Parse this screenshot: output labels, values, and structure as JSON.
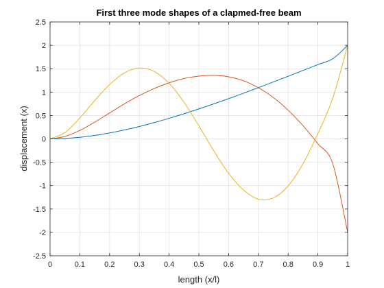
{
  "chart_data": {
    "type": "line",
    "title": "First three mode shapes of a clapmed-free beam",
    "xlabel": "length (x/l)",
    "ylabel": "displacement (x)",
    "xlim": [
      0,
      1
    ],
    "ylim": [
      -2.5,
      2.5
    ],
    "x_ticks": [
      "0",
      "0.1",
      "0.2",
      "0.3",
      "0.4",
      "0.5",
      "0.6",
      "0.7",
      "0.8",
      "0.9",
      "1"
    ],
    "y_ticks": [
      "-2.5",
      "-2",
      "-1.5",
      "-1",
      "-0.5",
      "0",
      "0.5",
      "1",
      "1.5",
      "2",
      "2.5"
    ],
    "grid": true,
    "legend": "none",
    "x": [
      0,
      0.05,
      0.1,
      0.15,
      0.2,
      0.25,
      0.3,
      0.35,
      0.4,
      0.45,
      0.5,
      0.55,
      0.6,
      0.65,
      0.7,
      0.75,
      0.8,
      0.85,
      0.9,
      0.95,
      1
    ],
    "series": [
      {
        "color": "#0072BD",
        "values": [
          0,
          0.009,
          0.033,
          0.073,
          0.126,
          0.19,
          0.264,
          0.348,
          0.439,
          0.537,
          0.64,
          0.748,
          0.86,
          0.976,
          1.095,
          1.216,
          1.339,
          1.463,
          1.588,
          1.713,
          2.0
        ]
      },
      {
        "color": "#D95319",
        "values": [
          0,
          0.051,
          0.18,
          0.357,
          0.553,
          0.748,
          0.926,
          1.077,
          1.199,
          1.29,
          1.341,
          1.358,
          1.327,
          1.242,
          1.094,
          0.885,
          0.613,
          0.282,
          -0.103,
          -0.533,
          -2.0
        ]
      },
      {
        "color": "#EDB120",
        "values": [
          0,
          0.133,
          0.446,
          0.818,
          1.161,
          1.411,
          1.515,
          1.442,
          1.19,
          0.783,
          0.279,
          -0.255,
          -0.736,
          -1.093,
          -1.289,
          -1.264,
          -1.006,
          -0.532,
          0.114,
          0.87,
          2.0
        ]
      }
    ]
  }
}
